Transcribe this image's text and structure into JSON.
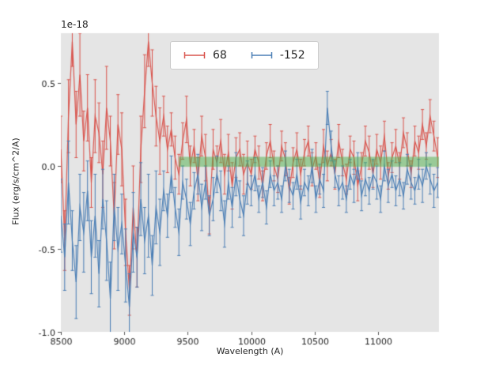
{
  "figure": {
    "offset_text": "1e-18",
    "xlabel": "Wavelength (A)",
    "ylabel": "Flux (erg/s/cm^2/A)"
  },
  "chart_data": {
    "type": "line",
    "title": "",
    "xlabel": "Wavelength (A)",
    "ylabel": "Flux (erg/s/cm^2/A)",
    "y_offset_factor": "1e-18",
    "xlim": [
      8500,
      11480
    ],
    "ylim": [
      -1.0,
      0.8
    ],
    "xticks": [
      8500,
      9000,
      9500,
      10000,
      10500,
      11000
    ],
    "xtick_labels": [
      "8500",
      "9000",
      "9500",
      "10000",
      "10500",
      "11000"
    ],
    "yticks": [
      -1.0,
      -0.5,
      0.0,
      0.5
    ],
    "ytick_labels": [
      "-1.0",
      "-0.5",
      "0.0",
      "0.5"
    ],
    "grid": false,
    "plot_background": "#e5e5e5",
    "tick_color": "#555555",
    "text_color": "#262626",
    "legend_position": "upper center",
    "x_start": 8500,
    "x_step": 30,
    "n_points": 100,
    "error_cap_halfwidth": 2,
    "band": {
      "x0": 9430,
      "x1": 11480,
      "y0": -0.005,
      "y1": 0.055,
      "color": "#4daf4a",
      "alpha": 0.5
    },
    "series": [
      {
        "name": "68",
        "color": "#d9544d",
        "values": [
          0.1,
          -0.45,
          0.3,
          0.75,
          0.25,
          0.55,
          0.15,
          0.35,
          -0.1,
          0.3,
          0.2,
          -0.05,
          0.35,
          0.15,
          -0.3,
          0.25,
          0.1,
          -0.4,
          -0.75,
          -0.25,
          -0.55,
          0.1,
          0.45,
          0.75,
          0.5,
          0.3,
          0.15,
          0.3,
          0.1,
          0.22,
          0.05,
          -0.05,
          0.15,
          0.28,
          0.0,
          0.12,
          -0.08,
          0.18,
          0.05,
          -0.3,
          0.1,
          0.02,
          0.15,
          -0.05,
          0.08,
          -0.12,
          0.05,
          0.1,
          -0.05,
          0.02,
          -0.05,
          0.1,
          0.02,
          -0.12,
          0.06,
          0.15,
          0.0,
          -0.08,
          0.12,
          0.04,
          -0.15,
          0.02,
          0.1,
          -0.05,
          0.08,
          0.15,
          -0.02,
          0.06,
          -0.1,
          0.12,
          0.0,
          0.08,
          -0.05,
          0.15,
          0.02,
          -0.08,
          0.1,
          0.05,
          -0.12,
          0.0,
          0.15,
          0.08,
          -0.05,
          0.1,
          0.02,
          0.18,
          -0.06,
          0.05,
          0.12,
          0.0,
          0.2,
          0.1,
          -0.05,
          0.15,
          0.08,
          0.25,
          0.12,
          0.3,
          0.18,
          0.05
        ],
        "yerr": [
          0.2,
          0.18,
          0.22,
          0.15,
          0.2,
          0.25,
          0.18,
          0.2,
          0.15,
          0.22,
          0.18,
          0.2,
          0.25,
          0.15,
          0.2,
          0.18,
          0.22,
          0.2,
          0.15,
          0.25,
          0.18,
          0.2,
          0.22,
          0.15,
          0.2,
          0.18,
          0.2,
          0.12,
          0.14,
          0.1,
          0.13,
          0.12,
          0.11,
          0.14,
          0.12,
          0.1,
          0.13,
          0.12,
          0.14,
          0.11,
          0.12,
          0.1,
          0.13,
          0.12,
          0.11,
          0.14,
          0.12,
          0.1,
          0.12,
          0.13,
          0.09,
          0.08,
          0.1,
          0.09,
          0.08,
          0.1,
          0.09,
          0.08,
          0.09,
          0.1,
          0.08,
          0.09,
          0.1,
          0.09,
          0.08,
          0.09,
          0.1,
          0.08,
          0.09,
          0.1,
          0.09,
          0.08,
          0.09,
          0.1,
          0.08,
          0.09,
          0.08,
          0.1,
          0.09,
          0.08,
          0.09,
          0.1,
          0.08,
          0.09,
          0.1,
          0.09,
          0.08,
          0.09,
          0.1,
          0.08,
          0.09,
          0.1,
          0.08,
          0.09,
          0.1,
          0.09,
          0.08,
          0.1,
          0.09,
          0.12
        ]
      },
      {
        "name": "-152",
        "color": "#4a7eb5",
        "values": [
          -0.3,
          -0.55,
          -0.1,
          -0.45,
          -0.7,
          -0.25,
          -0.4,
          -0.15,
          -0.55,
          -0.3,
          -0.65,
          -0.2,
          -0.45,
          -0.8,
          -0.25,
          -0.5,
          -0.35,
          -0.6,
          -0.85,
          -0.4,
          -0.55,
          -0.2,
          -0.45,
          -0.3,
          -0.6,
          -0.25,
          -0.4,
          -0.15,
          -0.3,
          -0.05,
          -0.25,
          -0.4,
          -0.1,
          -0.2,
          -0.35,
          -0.15,
          -0.05,
          -0.25,
          -0.1,
          -0.3,
          -0.2,
          -0.05,
          -0.15,
          -0.35,
          -0.1,
          -0.25,
          -0.05,
          -0.2,
          -0.3,
          -0.1,
          -0.15,
          -0.05,
          -0.2,
          -0.1,
          -0.25,
          -0.05,
          -0.15,
          -0.1,
          -0.2,
          0.0,
          -0.12,
          -0.18,
          -0.05,
          -0.22,
          -0.1,
          -0.15,
          0.0,
          -0.2,
          -0.08,
          -0.15,
          0.35,
          0.12,
          -0.05,
          -0.15,
          -0.1,
          -0.2,
          -0.05,
          -0.12,
          0.0,
          -0.18,
          -0.08,
          -0.15,
          -0.05,
          -0.1,
          -0.2,
          0.0,
          -0.12,
          -0.05,
          -0.15,
          -0.08,
          -0.18,
          -0.02,
          -0.1,
          -0.15,
          -0.05,
          -0.12,
          0.0,
          -0.08,
          -0.15,
          -0.1
        ],
        "yerr": [
          0.22,
          0.2,
          0.25,
          0.18,
          0.22,
          0.2,
          0.24,
          0.18,
          0.22,
          0.25,
          0.2,
          0.18,
          0.24,
          0.22,
          0.2,
          0.25,
          0.18,
          0.22,
          0.2,
          0.24,
          0.18,
          0.22,
          0.2,
          0.25,
          0.18,
          0.22,
          0.2,
          0.12,
          0.13,
          0.11,
          0.12,
          0.14,
          0.1,
          0.12,
          0.13,
          0.11,
          0.12,
          0.14,
          0.1,
          0.12,
          0.13,
          0.11,
          0.12,
          0.14,
          0.1,
          0.12,
          0.13,
          0.11,
          0.12,
          0.13,
          0.09,
          0.1,
          0.08,
          0.09,
          0.1,
          0.08,
          0.09,
          0.1,
          0.08,
          0.09,
          0.1,
          0.08,
          0.09,
          0.1,
          0.08,
          0.09,
          0.1,
          0.08,
          0.09,
          0.1,
          0.1,
          0.09,
          0.08,
          0.09,
          0.1,
          0.08,
          0.09,
          0.1,
          0.08,
          0.09,
          0.1,
          0.08,
          0.09,
          0.1,
          0.08,
          0.09,
          0.1,
          0.08,
          0.09,
          0.1,
          0.08,
          0.09,
          0.1,
          0.08,
          0.09,
          0.1,
          0.08,
          0.09,
          0.1,
          0.09
        ]
      }
    ]
  }
}
